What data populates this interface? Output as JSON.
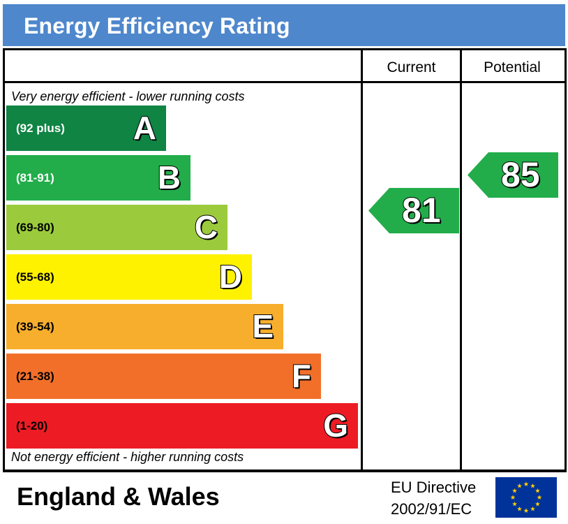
{
  "title": "Energy Efficiency Rating",
  "columns": {
    "current": "Current",
    "potential": "Potential"
  },
  "notes": {
    "top": "Very energy efficient - lower running costs",
    "bottom": "Not energy efficient - higher running costs"
  },
  "chart_data": {
    "type": "bar",
    "title": "Energy Efficiency Rating",
    "categories": [
      "A",
      "B",
      "C",
      "D",
      "E",
      "F",
      "G"
    ],
    "bands": [
      {
        "letter": "A",
        "range": "(92 plus)",
        "color": "#0f8443",
        "text_color": "#ffffff"
      },
      {
        "letter": "B",
        "range": "(81-91)",
        "color": "#22ad4a",
        "text_color": "#ffffff"
      },
      {
        "letter": "C",
        "range": "(69-80)",
        "color": "#9bcb3c",
        "text_color": "#000000"
      },
      {
        "letter": "D",
        "range": "(55-68)",
        "color": "#fff200",
        "text_color": "#000000"
      },
      {
        "letter": "E",
        "range": "(39-54)",
        "color": "#f8ae2d",
        "text_color": "#000000"
      },
      {
        "letter": "F",
        "range": "(21-38)",
        "color": "#f26f2a",
        "text_color": "#000000"
      },
      {
        "letter": "G",
        "range": "(1-20)",
        "color": "#ed1c24",
        "text_color": "#000000"
      }
    ],
    "current": 81,
    "potential": 85,
    "arrow_color": "#22ad4a"
  },
  "footer": {
    "region": "England & Wales",
    "directive_line1": "EU Directive",
    "directive_line2": "2002/91/EC",
    "flag_color": "#003399",
    "star_color": "#ffcc00"
  }
}
